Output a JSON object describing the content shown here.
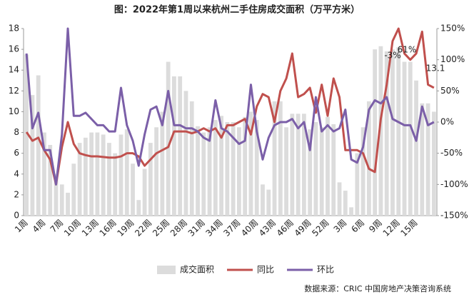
{
  "chart_data": {
    "type": "bar_line",
    "title": "图：2022年第1周以来杭州二手住房成交面积（万平方米）",
    "source": "数据来源：CRIC 中国房地产决策咨询系统",
    "categories": [
      "1周",
      null,
      null,
      "4周",
      null,
      null,
      "7周",
      null,
      null,
      "10周",
      null,
      null,
      "13周",
      null,
      null,
      "16周",
      null,
      null,
      "19周",
      null,
      null,
      "22周",
      null,
      null,
      "25周",
      null,
      null,
      "28周",
      null,
      null,
      "31周",
      null,
      null,
      "34周",
      null,
      null,
      "37周",
      null,
      null,
      "40周",
      null,
      null,
      "43周",
      null,
      null,
      "46周",
      null,
      null,
      "49周",
      null,
      null,
      "52周",
      null,
      null,
      "3周",
      null,
      null,
      "6周",
      null,
      null,
      "9周",
      null,
      null,
      "12周",
      null,
      null,
      "15周",
      null,
      null,
      null
    ],
    "series": [
      {
        "name": "成交面积",
        "color": "#dcdcdc",
        "axis": "y",
        "kind": "bar",
        "values": [
          15.5,
          11.6,
          13.5,
          8,
          6.8,
          4,
          3,
          2.2,
          5,
          7,
          7.5,
          8,
          8,
          7.8,
          7,
          6,
          7.8,
          8.3,
          5,
          1.5,
          4.5,
          7,
          8.5,
          10,
          14.8,
          13.4,
          13.4,
          12,
          11,
          8.6,
          8,
          8.5,
          9.2,
          9.6,
          9,
          9,
          8.5,
          9.5,
          10,
          9.2,
          3,
          2.5,
          11,
          11,
          8.5,
          9.8,
          9.8,
          9.8,
          8.3,
          9,
          8.5,
          9.5,
          8.8,
          3.2,
          2.4,
          0.8,
          6,
          8.5,
          11,
          16,
          16.3,
          15.8,
          16,
          16.2,
          14.8,
          14.8,
          13,
          10.8,
          10.8,
          10
        ]
      },
      {
        "name": "同比",
        "color": "#c0504d",
        "axis": "y2",
        "kind": "line",
        "values": [
          -16,
          -30,
          -25,
          -45,
          -60,
          -100,
          -40,
          0,
          -35,
          -50,
          -53,
          -55,
          -55,
          -56,
          -57,
          -57,
          -55,
          -50,
          -50,
          -55,
          -70,
          -60,
          -50,
          -45,
          -40,
          -15,
          -15,
          -15,
          -18,
          -15,
          -10,
          -15,
          -10,
          -25,
          -5,
          -5,
          0,
          5,
          -20,
          25,
          45,
          40,
          0,
          50,
          70,
          110,
          40,
          45,
          55,
          15,
          60,
          10,
          70,
          40,
          -45,
          -45,
          -45,
          -50,
          -75,
          -80,
          5,
          60,
          130,
          150,
          110,
          100,
          110,
          145,
          60,
          55
        ]
      },
      {
        "name": "环比",
        "color": "#7b5fa8",
        "axis": "y2",
        "kind": "line",
        "values": [
          110,
          -10,
          15,
          -45,
          -45,
          -100,
          -20,
          150,
          10,
          10,
          15,
          5,
          -5,
          -5,
          -15,
          -15,
          55,
          -5,
          -30,
          -70,
          -20,
          20,
          25,
          -5,
          50,
          -5,
          -5,
          -10,
          -10,
          -15,
          -25,
          -30,
          35,
          -10,
          -15,
          -25,
          -35,
          -30,
          60,
          -15,
          -60,
          -25,
          -5,
          0,
          0,
          5,
          -10,
          0,
          -45,
          40,
          -15,
          -5,
          -15,
          -10,
          20,
          -60,
          -65,
          -40,
          20,
          35,
          30,
          40,
          5,
          0,
          -5,
          -5,
          -30,
          25,
          -5,
          0
        ]
      }
    ],
    "ylim": [
      0,
      18
    ],
    "yticks": [
      0,
      2,
      4,
      6,
      8,
      10,
      12,
      14,
      16,
      18
    ],
    "y2lim": [
      -150,
      150
    ],
    "y2ticks": [
      {
        "value": -150,
        "label": "-150%"
      },
      {
        "value": -100,
        "label": "-100%"
      },
      {
        "value": -50,
        "label": "-50%"
      },
      {
        "value": 0,
        "label": "0%"
      },
      {
        "value": 50,
        "label": "50%"
      },
      {
        "value": 100,
        "label": "100%"
      },
      {
        "value": 150,
        "label": "150%"
      }
    ],
    "annotations": [
      "-3%",
      "61%",
      "13.1"
    ],
    "legend": "bottom"
  }
}
